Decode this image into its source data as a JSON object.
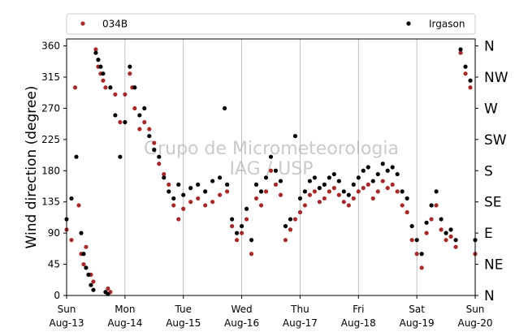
{
  "chart_data": {
    "type": "scatter",
    "title": "",
    "ylabel": "Wind direction (degree)",
    "xlabel": "",
    "ylim": [
      0,
      370
    ],
    "xlim": [
      "2017-08-13",
      "2017-08-20"
    ],
    "grid": "vertical",
    "legend_position": "top",
    "y_ticks": [
      0,
      45,
      90,
      135,
      180,
      225,
      270,
      315,
      360
    ],
    "compass_labels": [
      {
        "angle": 0,
        "label": "N"
      },
      {
        "angle": 45,
        "label": "NE"
      },
      {
        "angle": 90,
        "label": "E"
      },
      {
        "angle": 135,
        "label": "SE"
      },
      {
        "angle": 180,
        "label": "S"
      },
      {
        "angle": 225,
        "label": "SW"
      },
      {
        "angle": 270,
        "label": "W"
      },
      {
        "angle": 315,
        "label": "NW"
      },
      {
        "angle": 360,
        "label": "N"
      }
    ],
    "x_ticks": [
      {
        "date": "2017-08-13",
        "day": "Sun",
        "label": "Aug-13"
      },
      {
        "date": "2017-08-14",
        "day": "Mon",
        "label": "Aug-14"
      },
      {
        "date": "2017-08-15",
        "day": "Tue",
        "label": "Aug-15"
      },
      {
        "date": "2017-08-16",
        "day": "Wed",
        "label": "Aug-16"
      },
      {
        "date": "2017-08-17",
        "day": "Thu",
        "label": "Aug-17"
      },
      {
        "date": "2017-08-18",
        "day": "Fri",
        "label": "Aug-18"
      },
      {
        "date": "2017-08-19",
        "day": "Sat",
        "label": "Aug-19"
      },
      {
        "date": "2017-08-20",
        "day": "Sun",
        "label": "Aug-20"
      }
    ],
    "watermark": [
      "Grupo de Micrometeorologia",
      "IAG / USP"
    ],
    "series": [
      {
        "name": "034B",
        "color": "#a52a2a",
        "points": [
          [
            "2017-08-13T00:00",
            95
          ],
          [
            "2017-08-13T02:00",
            80
          ],
          [
            "2017-08-13T03:30",
            300
          ],
          [
            "2017-08-13T05:00",
            130
          ],
          [
            "2017-08-13T06:00",
            60
          ],
          [
            "2017-08-13T07:00",
            45
          ],
          [
            "2017-08-13T08:00",
            70
          ],
          [
            "2017-08-13T10:00",
            30
          ],
          [
            "2017-08-13T11:00",
            20
          ],
          [
            "2017-08-13T12:00",
            355
          ],
          [
            "2017-08-13T13:00",
            330
          ],
          [
            "2017-08-13T14:00",
            320
          ],
          [
            "2017-08-13T15:00",
            310
          ],
          [
            "2017-08-13T16:00",
            300
          ],
          [
            "2017-08-13T17:00",
            10
          ],
          [
            "2017-08-13T18:00",
            5
          ],
          [
            "2017-08-13T20:00",
            290
          ],
          [
            "2017-08-13T22:00",
            250
          ],
          [
            "2017-08-14T00:00",
            290
          ],
          [
            "2017-08-14T02:00",
            320
          ],
          [
            "2017-08-14T03:00",
            300
          ],
          [
            "2017-08-14T04:00",
            270
          ],
          [
            "2017-08-14T06:00",
            240
          ],
          [
            "2017-08-14T08:00",
            250
          ],
          [
            "2017-08-14T10:00",
            240
          ],
          [
            "2017-08-14T12:00",
            220
          ],
          [
            "2017-08-14T14:00",
            190
          ],
          [
            "2017-08-14T16:00",
            175
          ],
          [
            "2017-08-14T18:00",
            160
          ],
          [
            "2017-08-14T20:00",
            130
          ],
          [
            "2017-08-14T22:00",
            110
          ],
          [
            "2017-08-15T00:00",
            125
          ],
          [
            "2017-08-15T03:00",
            135
          ],
          [
            "2017-08-15T06:00",
            140
          ],
          [
            "2017-08-15T09:00",
            130
          ],
          [
            "2017-08-15T12:00",
            135
          ],
          [
            "2017-08-15T15:00",
            145
          ],
          [
            "2017-08-15T18:00",
            150
          ],
          [
            "2017-08-15T20:00",
            100
          ],
          [
            "2017-08-15T22:00",
            80
          ],
          [
            "2017-08-16T00:00",
            90
          ],
          [
            "2017-08-16T02:00",
            110
          ],
          [
            "2017-08-16T04:00",
            60
          ],
          [
            "2017-08-16T06:00",
            140
          ],
          [
            "2017-08-16T08:00",
            130
          ],
          [
            "2017-08-16T10:00",
            150
          ],
          [
            "2017-08-16T12:00",
            180
          ],
          [
            "2017-08-16T14:00",
            160
          ],
          [
            "2017-08-16T16:00",
            145
          ],
          [
            "2017-08-16T18:00",
            80
          ],
          [
            "2017-08-16T20:00",
            95
          ],
          [
            "2017-08-16T22:00",
            110
          ],
          [
            "2017-08-17T00:00",
            120
          ],
          [
            "2017-08-17T02:00",
            130
          ],
          [
            "2017-08-17T04:00",
            145
          ],
          [
            "2017-08-17T06:00",
            150
          ],
          [
            "2017-08-17T08:00",
            135
          ],
          [
            "2017-08-17T10:00",
            140
          ],
          [
            "2017-08-17T12:00",
            150
          ],
          [
            "2017-08-17T14:00",
            155
          ],
          [
            "2017-08-17T16:00",
            145
          ],
          [
            "2017-08-17T18:00",
            135
          ],
          [
            "2017-08-17T20:00",
            130
          ],
          [
            "2017-08-17T22:00",
            140
          ],
          [
            "2017-08-18T00:00",
            150
          ],
          [
            "2017-08-18T02:00",
            155
          ],
          [
            "2017-08-18T04:00",
            160
          ],
          [
            "2017-08-18T06:00",
            140
          ],
          [
            "2017-08-18T08:00",
            150
          ],
          [
            "2017-08-18T10:00",
            165
          ],
          [
            "2017-08-18T12:00",
            155
          ],
          [
            "2017-08-18T14:00",
            160
          ],
          [
            "2017-08-18T16:00",
            150
          ],
          [
            "2017-08-18T18:00",
            130
          ],
          [
            "2017-08-18T20:00",
            120
          ],
          [
            "2017-08-18T22:00",
            80
          ],
          [
            "2017-08-19T00:00",
            60
          ],
          [
            "2017-08-19T02:00",
            40
          ],
          [
            "2017-08-19T04:00",
            90
          ],
          [
            "2017-08-19T06:00",
            110
          ],
          [
            "2017-08-19T08:00",
            130
          ],
          [
            "2017-08-19T10:00",
            95
          ],
          [
            "2017-08-19T12:00",
            80
          ],
          [
            "2017-08-19T14:00",
            85
          ],
          [
            "2017-08-19T16:00",
            70
          ],
          [
            "2017-08-19T18:00",
            350
          ],
          [
            "2017-08-19T20:00",
            320
          ],
          [
            "2017-08-19T22:00",
            300
          ],
          [
            "2017-08-20T00:00",
            60
          ]
        ]
      },
      {
        "name": "Irgason",
        "color": "#000000",
        "points": [
          [
            "2017-08-13T00:00",
            110
          ],
          [
            "2017-08-13T02:00",
            140
          ],
          [
            "2017-08-13T04:00",
            200
          ],
          [
            "2017-08-13T06:00",
            90
          ],
          [
            "2017-08-13T07:00",
            60
          ],
          [
            "2017-08-13T08:00",
            40
          ],
          [
            "2017-08-13T09:00",
            30
          ],
          [
            "2017-08-13T10:00",
            15
          ],
          [
            "2017-08-13T11:00",
            8
          ],
          [
            "2017-08-13T12:00",
            350
          ],
          [
            "2017-08-13T13:00",
            340
          ],
          [
            "2017-08-13T14:00",
            330
          ],
          [
            "2017-08-13T15:00",
            320
          ],
          [
            "2017-08-13T16:00",
            5
          ],
          [
            "2017-08-13T17:00",
            2
          ],
          [
            "2017-08-13T18:00",
            300
          ],
          [
            "2017-08-13T20:00",
            260
          ],
          [
            "2017-08-13T22:00",
            200
          ],
          [
            "2017-08-14T00:00",
            250
          ],
          [
            "2017-08-14T02:00",
            330
          ],
          [
            "2017-08-14T04:00",
            300
          ],
          [
            "2017-08-14T06:00",
            260
          ],
          [
            "2017-08-14T08:00",
            270
          ],
          [
            "2017-08-14T10:00",
            230
          ],
          [
            "2017-08-14T12:00",
            210
          ],
          [
            "2017-08-14T14:00",
            200
          ],
          [
            "2017-08-14T16:00",
            170
          ],
          [
            "2017-08-14T18:00",
            150
          ],
          [
            "2017-08-14T20:00",
            140
          ],
          [
            "2017-08-14T22:00",
            160
          ],
          [
            "2017-08-15T00:00",
            145
          ],
          [
            "2017-08-15T03:00",
            155
          ],
          [
            "2017-08-15T06:00",
            160
          ],
          [
            "2017-08-15T09:00",
            150
          ],
          [
            "2017-08-15T12:00",
            165
          ],
          [
            "2017-08-15T15:00",
            170
          ],
          [
            "2017-08-15T17:00",
            270
          ],
          [
            "2017-08-15T18:00",
            160
          ],
          [
            "2017-08-15T20:00",
            110
          ],
          [
            "2017-08-15T22:00",
            90
          ],
          [
            "2017-08-16T00:00",
            100
          ],
          [
            "2017-08-16T02:00",
            125
          ],
          [
            "2017-08-16T04:00",
            80
          ],
          [
            "2017-08-16T06:00",
            160
          ],
          [
            "2017-08-16T08:00",
            150
          ],
          [
            "2017-08-16T10:00",
            170
          ],
          [
            "2017-08-16T12:00",
            200
          ],
          [
            "2017-08-16T14:00",
            180
          ],
          [
            "2017-08-16T16:00",
            165
          ],
          [
            "2017-08-16T18:00",
            100
          ],
          [
            "2017-08-16T20:00",
            110
          ],
          [
            "2017-08-16T22:00",
            230
          ],
          [
            "2017-08-17T00:00",
            140
          ],
          [
            "2017-08-17T02:00",
            150
          ],
          [
            "2017-08-17T04:00",
            165
          ],
          [
            "2017-08-17T06:00",
            170
          ],
          [
            "2017-08-17T08:00",
            155
          ],
          [
            "2017-08-17T10:00",
            160
          ],
          [
            "2017-08-17T12:00",
            170
          ],
          [
            "2017-08-17T14:00",
            175
          ],
          [
            "2017-08-17T16:00",
            165
          ],
          [
            "2017-08-17T18:00",
            150
          ],
          [
            "2017-08-17T20:00",
            145
          ],
          [
            "2017-08-17T22:00",
            160
          ],
          [
            "2017-08-18T00:00",
            170
          ],
          [
            "2017-08-18T02:00",
            180
          ],
          [
            "2017-08-18T04:00",
            185
          ],
          [
            "2017-08-18T06:00",
            165
          ],
          [
            "2017-08-18T08:00",
            175
          ],
          [
            "2017-08-18T10:00",
            190
          ],
          [
            "2017-08-18T12:00",
            180
          ],
          [
            "2017-08-18T14:00",
            185
          ],
          [
            "2017-08-18T16:00",
            175
          ],
          [
            "2017-08-18T18:00",
            150
          ],
          [
            "2017-08-18T20:00",
            140
          ],
          [
            "2017-08-18T22:00",
            100
          ],
          [
            "2017-08-19T00:00",
            80
          ],
          [
            "2017-08-19T02:00",
            60
          ],
          [
            "2017-08-19T04:00",
            105
          ],
          [
            "2017-08-19T06:00",
            130
          ],
          [
            "2017-08-19T08:00",
            150
          ],
          [
            "2017-08-19T10:00",
            110
          ],
          [
            "2017-08-19T12:00",
            90
          ],
          [
            "2017-08-19T14:00",
            95
          ],
          [
            "2017-08-19T16:00",
            80
          ],
          [
            "2017-08-19T18:00",
            355
          ],
          [
            "2017-08-19T20:00",
            330
          ],
          [
            "2017-08-19T22:00",
            310
          ],
          [
            "2017-08-20T00:00",
            80
          ]
        ]
      }
    ]
  }
}
